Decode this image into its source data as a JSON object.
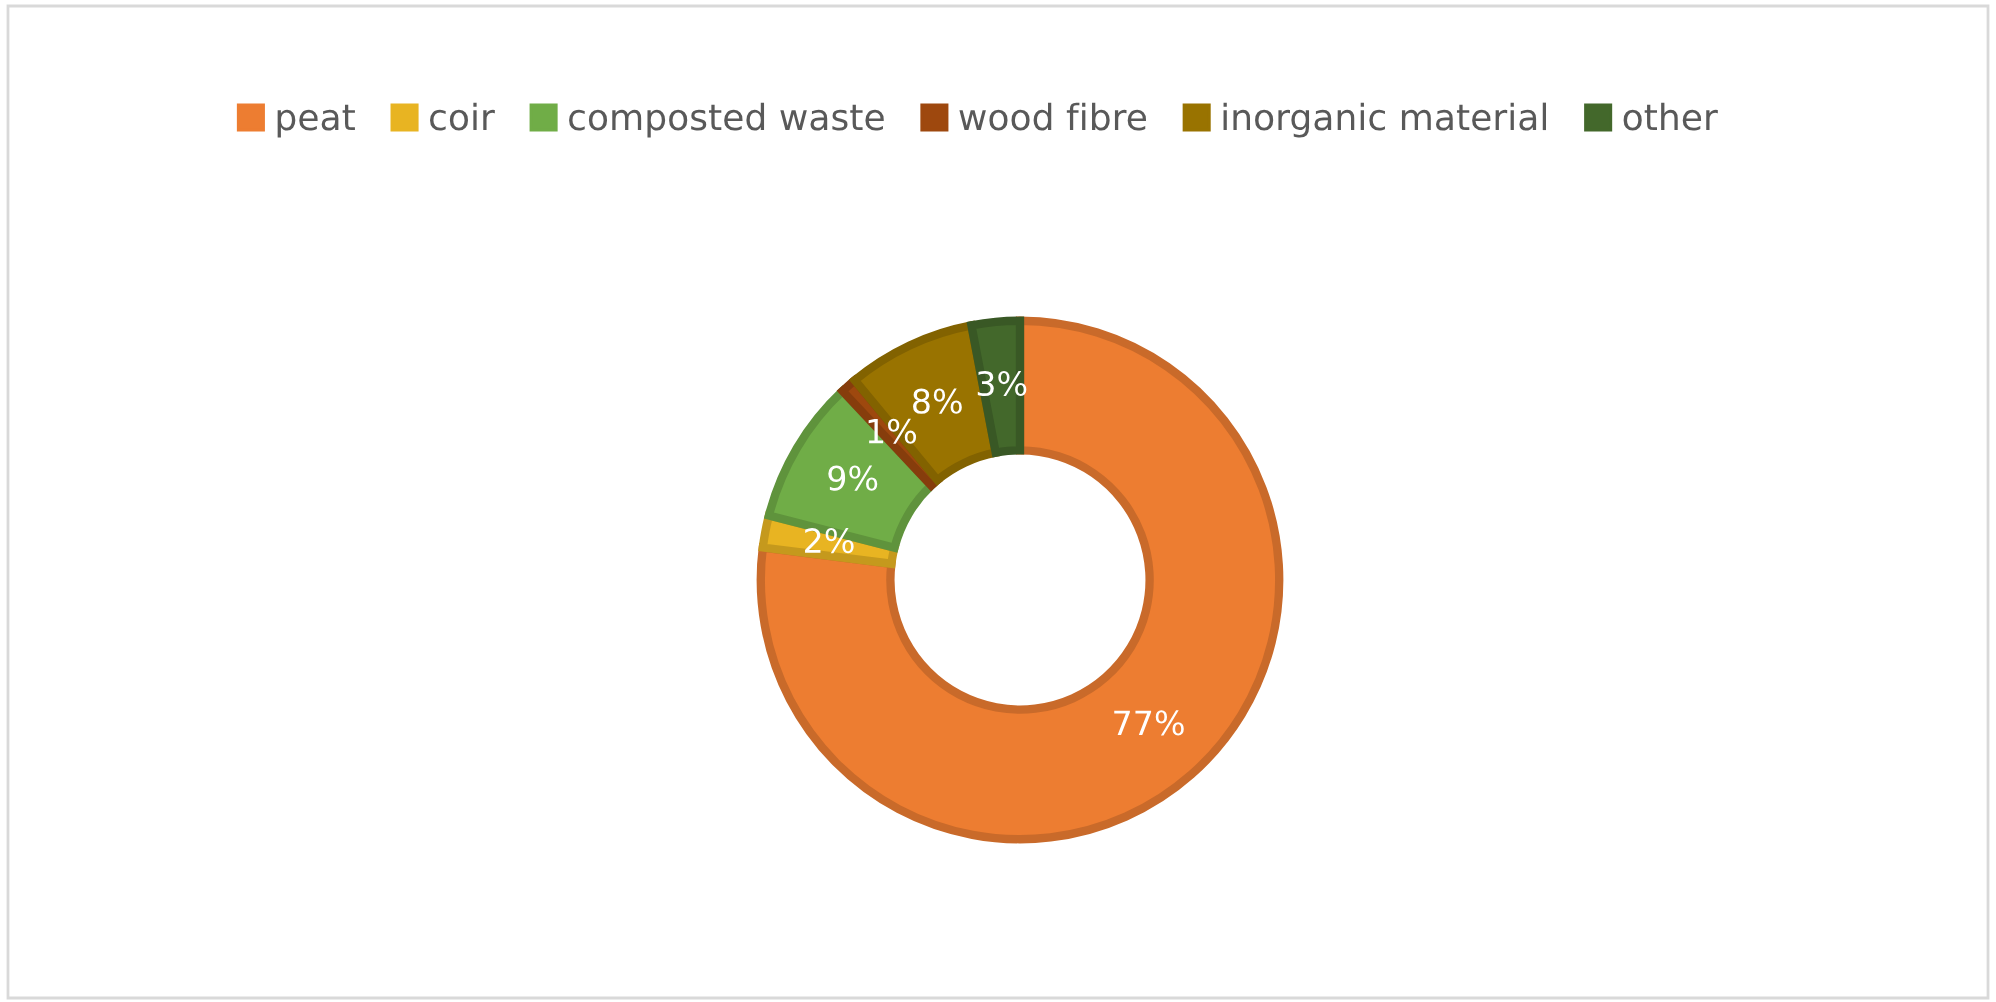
{
  "chart_data": {
    "type": "donut",
    "categories": [
      "peat",
      "coir",
      "composted waste",
      "wood fibre",
      "inorganic material",
      "other"
    ],
    "values": [
      77,
      2,
      9,
      1,
      8,
      3
    ],
    "colors": [
      "#ed7d31",
      "#e8b422",
      "#70ad47",
      "#9e480e",
      "#997300",
      "#43682b"
    ],
    "value_labels": [
      "77%",
      "2%",
      "9%",
      "1%",
      "8%",
      "3%"
    ],
    "legend": "top"
  }
}
